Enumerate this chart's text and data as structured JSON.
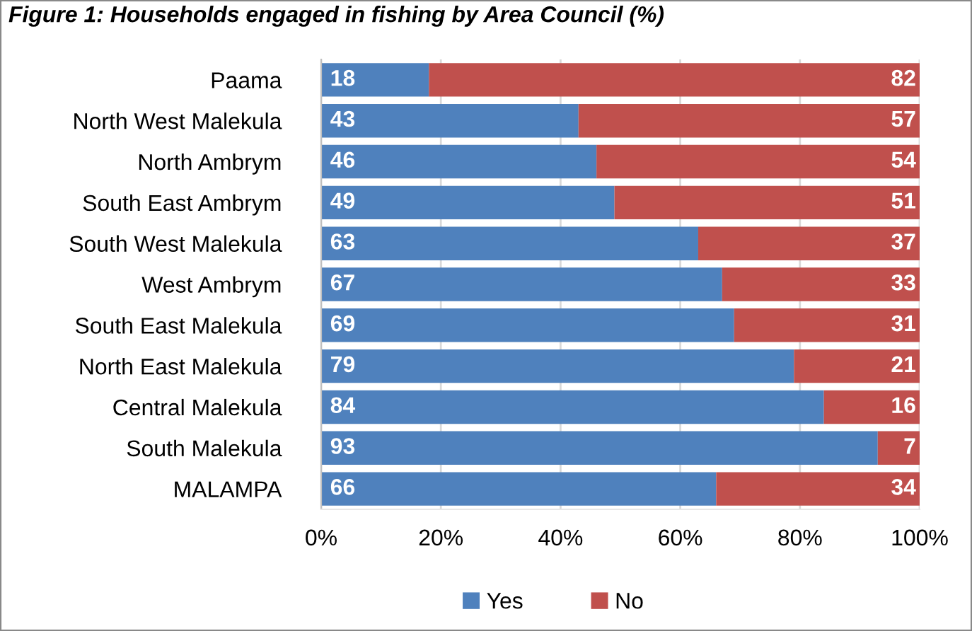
{
  "chart_data": {
    "type": "bar",
    "orientation": "horizontal",
    "stacked": true,
    "title": "Figure 1: Households engaged in fishing by Area Council (%)",
    "categories": [
      "Paama",
      "North West Malekula",
      "North Ambrym",
      "South East Ambrym",
      "South West Malekula",
      "West Ambrym",
      "South East Malekula",
      "North East Malekula",
      "Central Malekula",
      "South Malekula",
      "MALAMPA"
    ],
    "series": [
      {
        "name": "Yes",
        "color": "#4f81bd",
        "values": [
          18,
          43,
          46,
          49,
          63,
          67,
          69,
          79,
          84,
          93,
          66
        ]
      },
      {
        "name": "No",
        "color": "#c0504d",
        "values": [
          82,
          57,
          54,
          51,
          37,
          33,
          31,
          21,
          16,
          7,
          34
        ]
      }
    ],
    "xlim": [
      0,
      100
    ],
    "xticks": [
      {
        "value": 0,
        "label": "0%"
      },
      {
        "value": 20,
        "label": "20%"
      },
      {
        "value": 40,
        "label": "40%"
      },
      {
        "value": 60,
        "label": "60%"
      },
      {
        "value": 80,
        "label": "80%"
      },
      {
        "value": 100,
        "label": "100%"
      }
    ],
    "grid": "x",
    "legend": "bottom",
    "data_labels": true
  }
}
